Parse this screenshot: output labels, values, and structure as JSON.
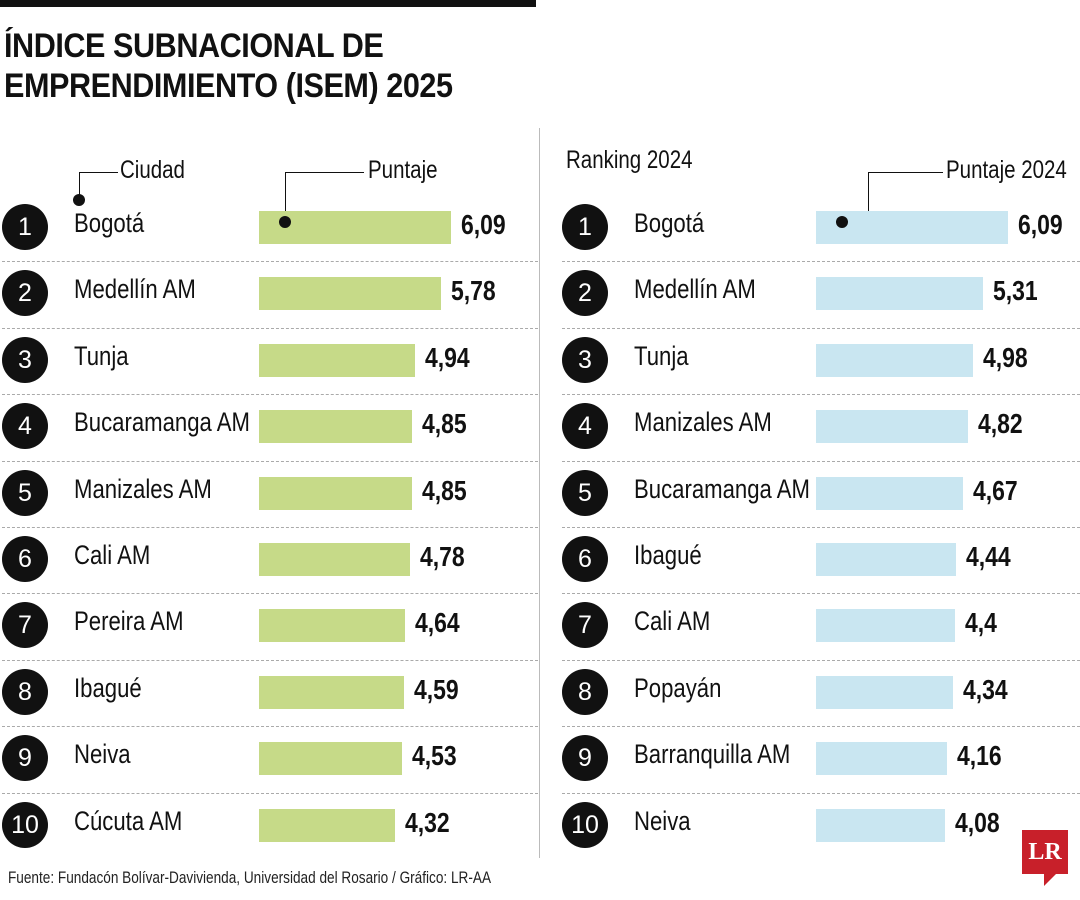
{
  "chart_data": [
    {
      "type": "bar",
      "orientation": "horizontal",
      "title": "ÍNDICE SUBNACIONAL DE EMPRENDIMIENTO (ISEM) 2025",
      "rank_label": "",
      "category_label": "Ciudad",
      "value_label": "Puntaje",
      "color": "#c6da88",
      "categories": [
        "Bogotá",
        "Medellín AM",
        "Tunja",
        "Bucaramanga AM",
        "Manizales AM",
        "Cali AM",
        "Pereira AM",
        "Ibagué",
        "Neiva",
        "Cúcuta AM"
      ],
      "values": [
        6.09,
        5.78,
        4.94,
        4.85,
        4.85,
        4.78,
        4.64,
        4.59,
        4.53,
        4.32
      ],
      "value_text": [
        "6,09",
        "5,78",
        "4,94",
        "4,85",
        "4,85",
        "4,78",
        "4,64",
        "4,59",
        "4,53",
        "4,32"
      ]
    },
    {
      "type": "bar",
      "orientation": "horizontal",
      "rank_label": "Ranking 2024",
      "value_label": "Puntaje 2024",
      "color": "#c9e6f1",
      "categories": [
        "Bogotá",
        "Medellín AM",
        "Tunja",
        "Manizales AM",
        "Bucaramanga AM",
        "Ibagué",
        "Cali AM",
        "Popayán",
        "Barranquilla AM",
        "Neiva"
      ],
      "values": [
        6.09,
        5.31,
        4.98,
        4.82,
        4.67,
        4.44,
        4.4,
        4.34,
        4.16,
        4.08
      ],
      "value_text": [
        "6,09",
        "5,31",
        "4,98",
        "4,82",
        "4,67",
        "4,44",
        "4,4",
        "4,34",
        "4,16",
        "4,08"
      ]
    }
  ],
  "title_line1": "ÍNDICE SUBNACIONAL DE",
  "title_line2": "EMPRENDIMIENTO (ISEM) 2025",
  "ranks": [
    "1",
    "2",
    "3",
    "4",
    "5",
    "6",
    "7",
    "8",
    "9",
    "10"
  ],
  "footer": "Fuente: Fundacón Bolívar-Davivienda, Universidad del Rosario / Gráfico: LR-AA",
  "logo": "LR"
}
